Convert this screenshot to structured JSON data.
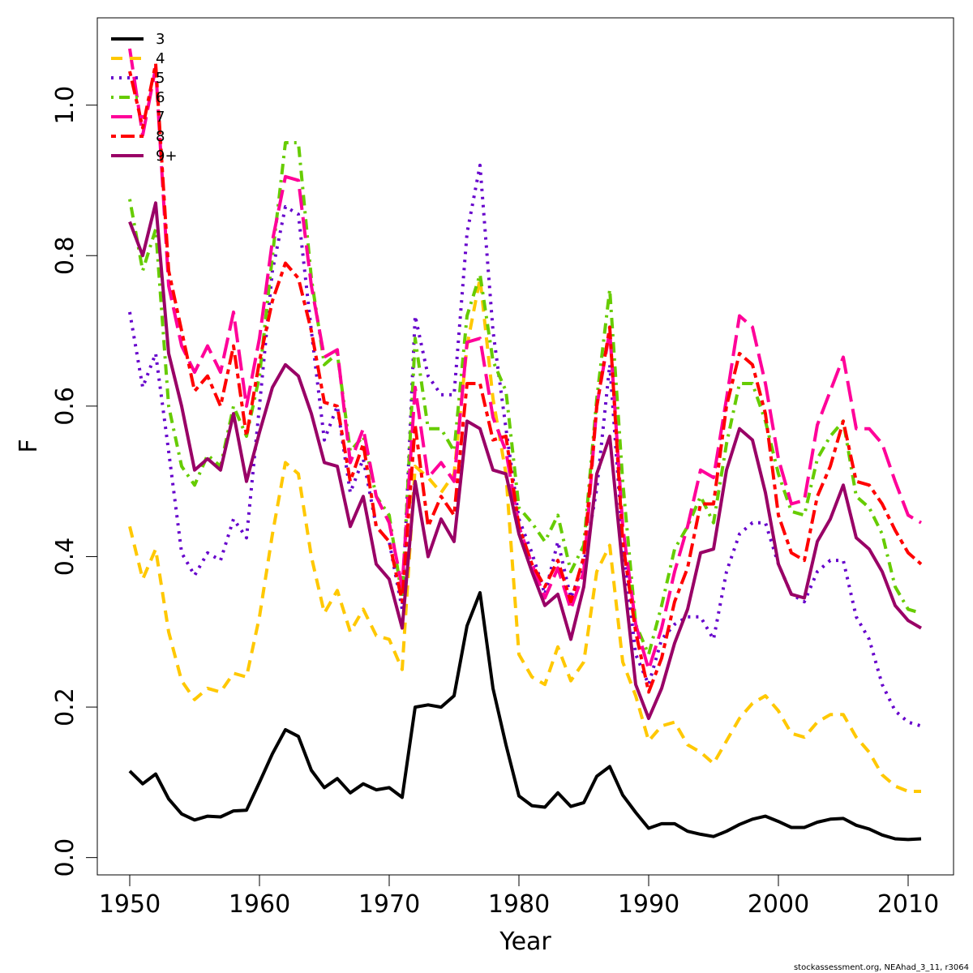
{
  "chart_data": {
    "type": "line",
    "title": "",
    "xlabel": "Year",
    "ylabel": "F",
    "xlim": [
      1947.5,
      2013.5
    ],
    "ylim": [
      -0.023,
      1.116
    ],
    "xticks": [
      1950,
      1960,
      1970,
      1980,
      1990,
      2000,
      2010
    ],
    "yticks": [
      0.0,
      0.2,
      0.4,
      0.6,
      0.8,
      1.0
    ],
    "ytick_labels": [
      "0.0",
      "0.2",
      "0.4",
      "0.6",
      "0.8",
      "1.0"
    ],
    "grid": false,
    "legend_position": "top-left",
    "x": [
      1950,
      1951,
      1952,
      1953,
      1954,
      1955,
      1956,
      1957,
      1958,
      1959,
      1960,
      1961,
      1962,
      1963,
      1964,
      1965,
      1966,
      1967,
      1968,
      1969,
      1970,
      1971,
      1972,
      1973,
      1974,
      1975,
      1976,
      1977,
      1978,
      1979,
      1980,
      1981,
      1982,
      1983,
      1984,
      1985,
      1986,
      1987,
      1988,
      1989,
      1990,
      1991,
      1992,
      1993,
      1994,
      1995,
      1996,
      1997,
      1998,
      1999,
      2000,
      2001,
      2002,
      2003,
      2004,
      2005,
      2006,
      2007,
      2008,
      2009,
      2010,
      2011
    ],
    "series": [
      {
        "name": "3",
        "color": "#000000",
        "dash": "solid",
        "values": [
          0.115,
          0.098,
          0.111,
          0.078,
          0.058,
          0.05,
          0.055,
          0.054,
          0.062,
          0.063,
          0.1,
          0.138,
          0.17,
          0.161,
          0.116,
          0.093,
          0.105,
          0.086,
          0.098,
          0.09,
          0.093,
          0.08,
          0.2,
          0.203,
          0.2,
          0.215,
          0.308,
          0.352,
          0.225,
          0.15,
          0.082,
          0.069,
          0.067,
          0.086,
          0.068,
          0.073,
          0.108,
          0.121,
          0.083,
          0.06,
          0.039,
          0.045,
          0.045,
          0.035,
          0.031,
          0.028,
          0.035,
          0.044,
          0.051,
          0.055,
          0.048,
          0.04,
          0.04,
          0.047,
          0.051,
          0.052,
          0.043,
          0.038,
          0.03,
          0.025,
          0.024,
          0.025
        ]
      },
      {
        "name": "4",
        "color": "#ffc800",
        "dash": "dashed",
        "values": [
          0.44,
          0.37,
          0.41,
          0.3,
          0.235,
          0.21,
          0.225,
          0.22,
          0.245,
          0.24,
          0.32,
          0.43,
          0.525,
          0.51,
          0.4,
          0.325,
          0.355,
          0.3,
          0.33,
          0.295,
          0.29,
          0.25,
          0.52,
          0.505,
          0.485,
          0.51,
          0.68,
          0.77,
          0.61,
          0.51,
          0.27,
          0.24,
          0.23,
          0.28,
          0.235,
          0.26,
          0.38,
          0.415,
          0.26,
          0.215,
          0.155,
          0.175,
          0.18,
          0.15,
          0.14,
          0.125,
          0.155,
          0.185,
          0.205,
          0.215,
          0.195,
          0.165,
          0.16,
          0.18,
          0.19,
          0.19,
          0.16,
          0.14,
          0.11,
          0.095,
          0.088,
          0.088
        ]
      },
      {
        "name": "5",
        "color": "#6600cc",
        "dash": "dotted",
        "values": [
          0.725,
          0.625,
          0.67,
          0.54,
          0.405,
          0.375,
          0.405,
          0.395,
          0.45,
          0.425,
          0.6,
          0.78,
          0.865,
          0.855,
          0.7,
          0.555,
          0.6,
          0.485,
          0.53,
          0.44,
          0.42,
          0.33,
          0.72,
          0.64,
          0.615,
          0.615,
          0.83,
          0.92,
          0.7,
          0.57,
          0.45,
          0.405,
          0.35,
          0.42,
          0.345,
          0.39,
          0.49,
          0.655,
          0.42,
          0.27,
          0.23,
          0.29,
          0.31,
          0.32,
          0.32,
          0.29,
          0.38,
          0.43,
          0.445,
          0.445,
          0.39,
          0.35,
          0.34,
          0.38,
          0.395,
          0.395,
          0.32,
          0.29,
          0.23,
          0.195,
          0.18,
          0.175
        ]
      },
      {
        "name": "6",
        "color": "#66cc00",
        "dash": "dashdot",
        "values": [
          0.875,
          0.78,
          0.835,
          0.6,
          0.52,
          0.495,
          0.535,
          0.52,
          0.6,
          0.56,
          0.64,
          0.8,
          0.95,
          0.95,
          0.77,
          0.655,
          0.67,
          0.54,
          0.56,
          0.48,
          0.455,
          0.345,
          0.69,
          0.57,
          0.57,
          0.54,
          0.72,
          0.775,
          0.66,
          0.62,
          0.465,
          0.445,
          0.42,
          0.455,
          0.38,
          0.415,
          0.61,
          0.755,
          0.5,
          0.31,
          0.27,
          0.335,
          0.41,
          0.44,
          0.48,
          0.445,
          0.55,
          0.63,
          0.63,
          0.58,
          0.51,
          0.46,
          0.455,
          0.53,
          0.56,
          0.58,
          0.48,
          0.465,
          0.43,
          0.36,
          0.33,
          0.325
        ]
      },
      {
        "name": "7",
        "color": "#ff0099",
        "dash": "longdash",
        "values": [
          1.075,
          0.96,
          1.05,
          0.76,
          0.68,
          0.645,
          0.68,
          0.645,
          0.725,
          0.6,
          0.69,
          0.82,
          0.905,
          0.9,
          0.76,
          0.665,
          0.675,
          0.525,
          0.57,
          0.48,
          0.445,
          0.36,
          0.625,
          0.505,
          0.525,
          0.5,
          0.685,
          0.69,
          0.585,
          0.54,
          0.44,
          0.39,
          0.345,
          0.385,
          0.33,
          0.38,
          0.6,
          0.7,
          0.44,
          0.31,
          0.25,
          0.305,
          0.38,
          0.44,
          0.515,
          0.505,
          0.61,
          0.72,
          0.705,
          0.63,
          0.53,
          0.47,
          0.475,
          0.575,
          0.62,
          0.665,
          0.57,
          0.57,
          0.55,
          0.5,
          0.455,
          0.445
        ]
      },
      {
        "name": "8",
        "color": "#ff0000",
        "dash": "twodash",
        "values": [
          1.045,
          0.97,
          1.055,
          0.78,
          0.7,
          0.62,
          0.64,
          0.6,
          0.68,
          0.56,
          0.66,
          0.74,
          0.79,
          0.77,
          0.7,
          0.605,
          0.6,
          0.5,
          0.55,
          0.44,
          0.42,
          0.34,
          0.575,
          0.44,
          0.48,
          0.455,
          0.63,
          0.63,
          0.555,
          0.56,
          0.44,
          0.39,
          0.36,
          0.395,
          0.34,
          0.4,
          0.6,
          0.705,
          0.42,
          0.3,
          0.22,
          0.265,
          0.34,
          0.385,
          0.47,
          0.47,
          0.6,
          0.67,
          0.655,
          0.59,
          0.455,
          0.405,
          0.395,
          0.48,
          0.52,
          0.58,
          0.5,
          0.495,
          0.47,
          0.435,
          0.405,
          0.39
        ]
      },
      {
        "name": "9+",
        "color": "#990066",
        "dash": "solid",
        "values": [
          0.845,
          0.8,
          0.87,
          0.67,
          0.6,
          0.515,
          0.53,
          0.515,
          0.59,
          0.5,
          0.565,
          0.625,
          0.655,
          0.64,
          0.59,
          0.525,
          0.52,
          0.44,
          0.48,
          0.39,
          0.37,
          0.305,
          0.5,
          0.4,
          0.45,
          0.42,
          0.58,
          0.57,
          0.515,
          0.51,
          0.43,
          0.38,
          0.335,
          0.35,
          0.29,
          0.36,
          0.51,
          0.56,
          0.385,
          0.23,
          0.185,
          0.225,
          0.285,
          0.33,
          0.405,
          0.41,
          0.515,
          0.57,
          0.555,
          0.485,
          0.39,
          0.35,
          0.345,
          0.42,
          0.45,
          0.495,
          0.425,
          0.41,
          0.38,
          0.335,
          0.315,
          0.305
        ]
      }
    ]
  },
  "footer": "stockassessment.org, NEAhad_3_11, r3064"
}
